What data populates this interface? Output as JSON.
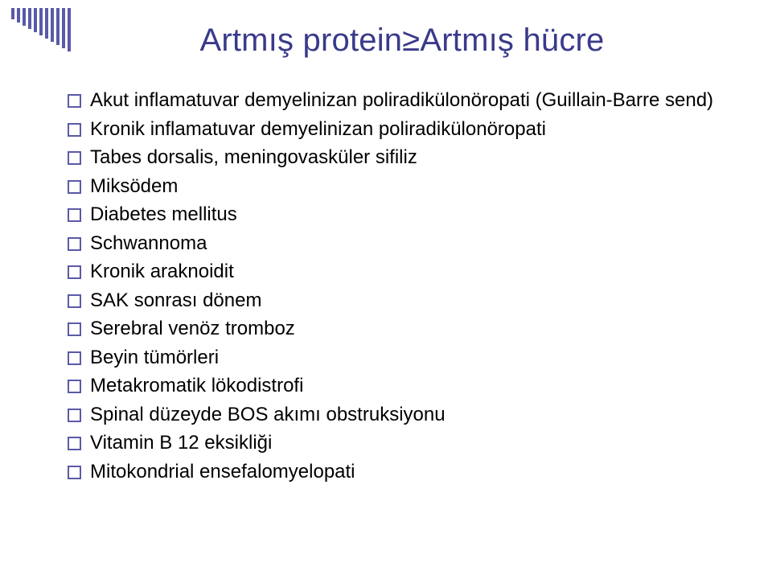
{
  "slide": {
    "title": "Artmış protein≥Artmış hücre",
    "title_color": "#3a3a8a",
    "title_fontsize": 40,
    "body_fontsize": 24,
    "body_color": "#000000",
    "bullet_border_color": "#5a5aa8",
    "background_color": "#ffffff",
    "barcode_color": "#5a5aa8",
    "barcode_heights": [
      14,
      18,
      22,
      26,
      30,
      34,
      38,
      42,
      46,
      50,
      54
    ],
    "items": [
      "Akut inflamatuvar demyelinizan poliradikülonöropati (Guillain-Barre send)",
      "Kronik inflamatuvar demyelinizan poliradikülonöropati",
      "Tabes dorsalis, meningovasküler sifiliz",
      "Miksödem",
      "Diabetes mellitus",
      "Schwannoma",
      "Kronik araknoidit",
      "SAK sonrası dönem",
      "Serebral venöz tromboz",
      "Beyin tümörleri",
      "Metakromatik lökodistrofi",
      "Spinal düzeyde BOS akımı obstruksiyonu",
      "Vitamin B 12 eksikliği",
      "Mitokondrial ensefalomyelopati"
    ]
  }
}
